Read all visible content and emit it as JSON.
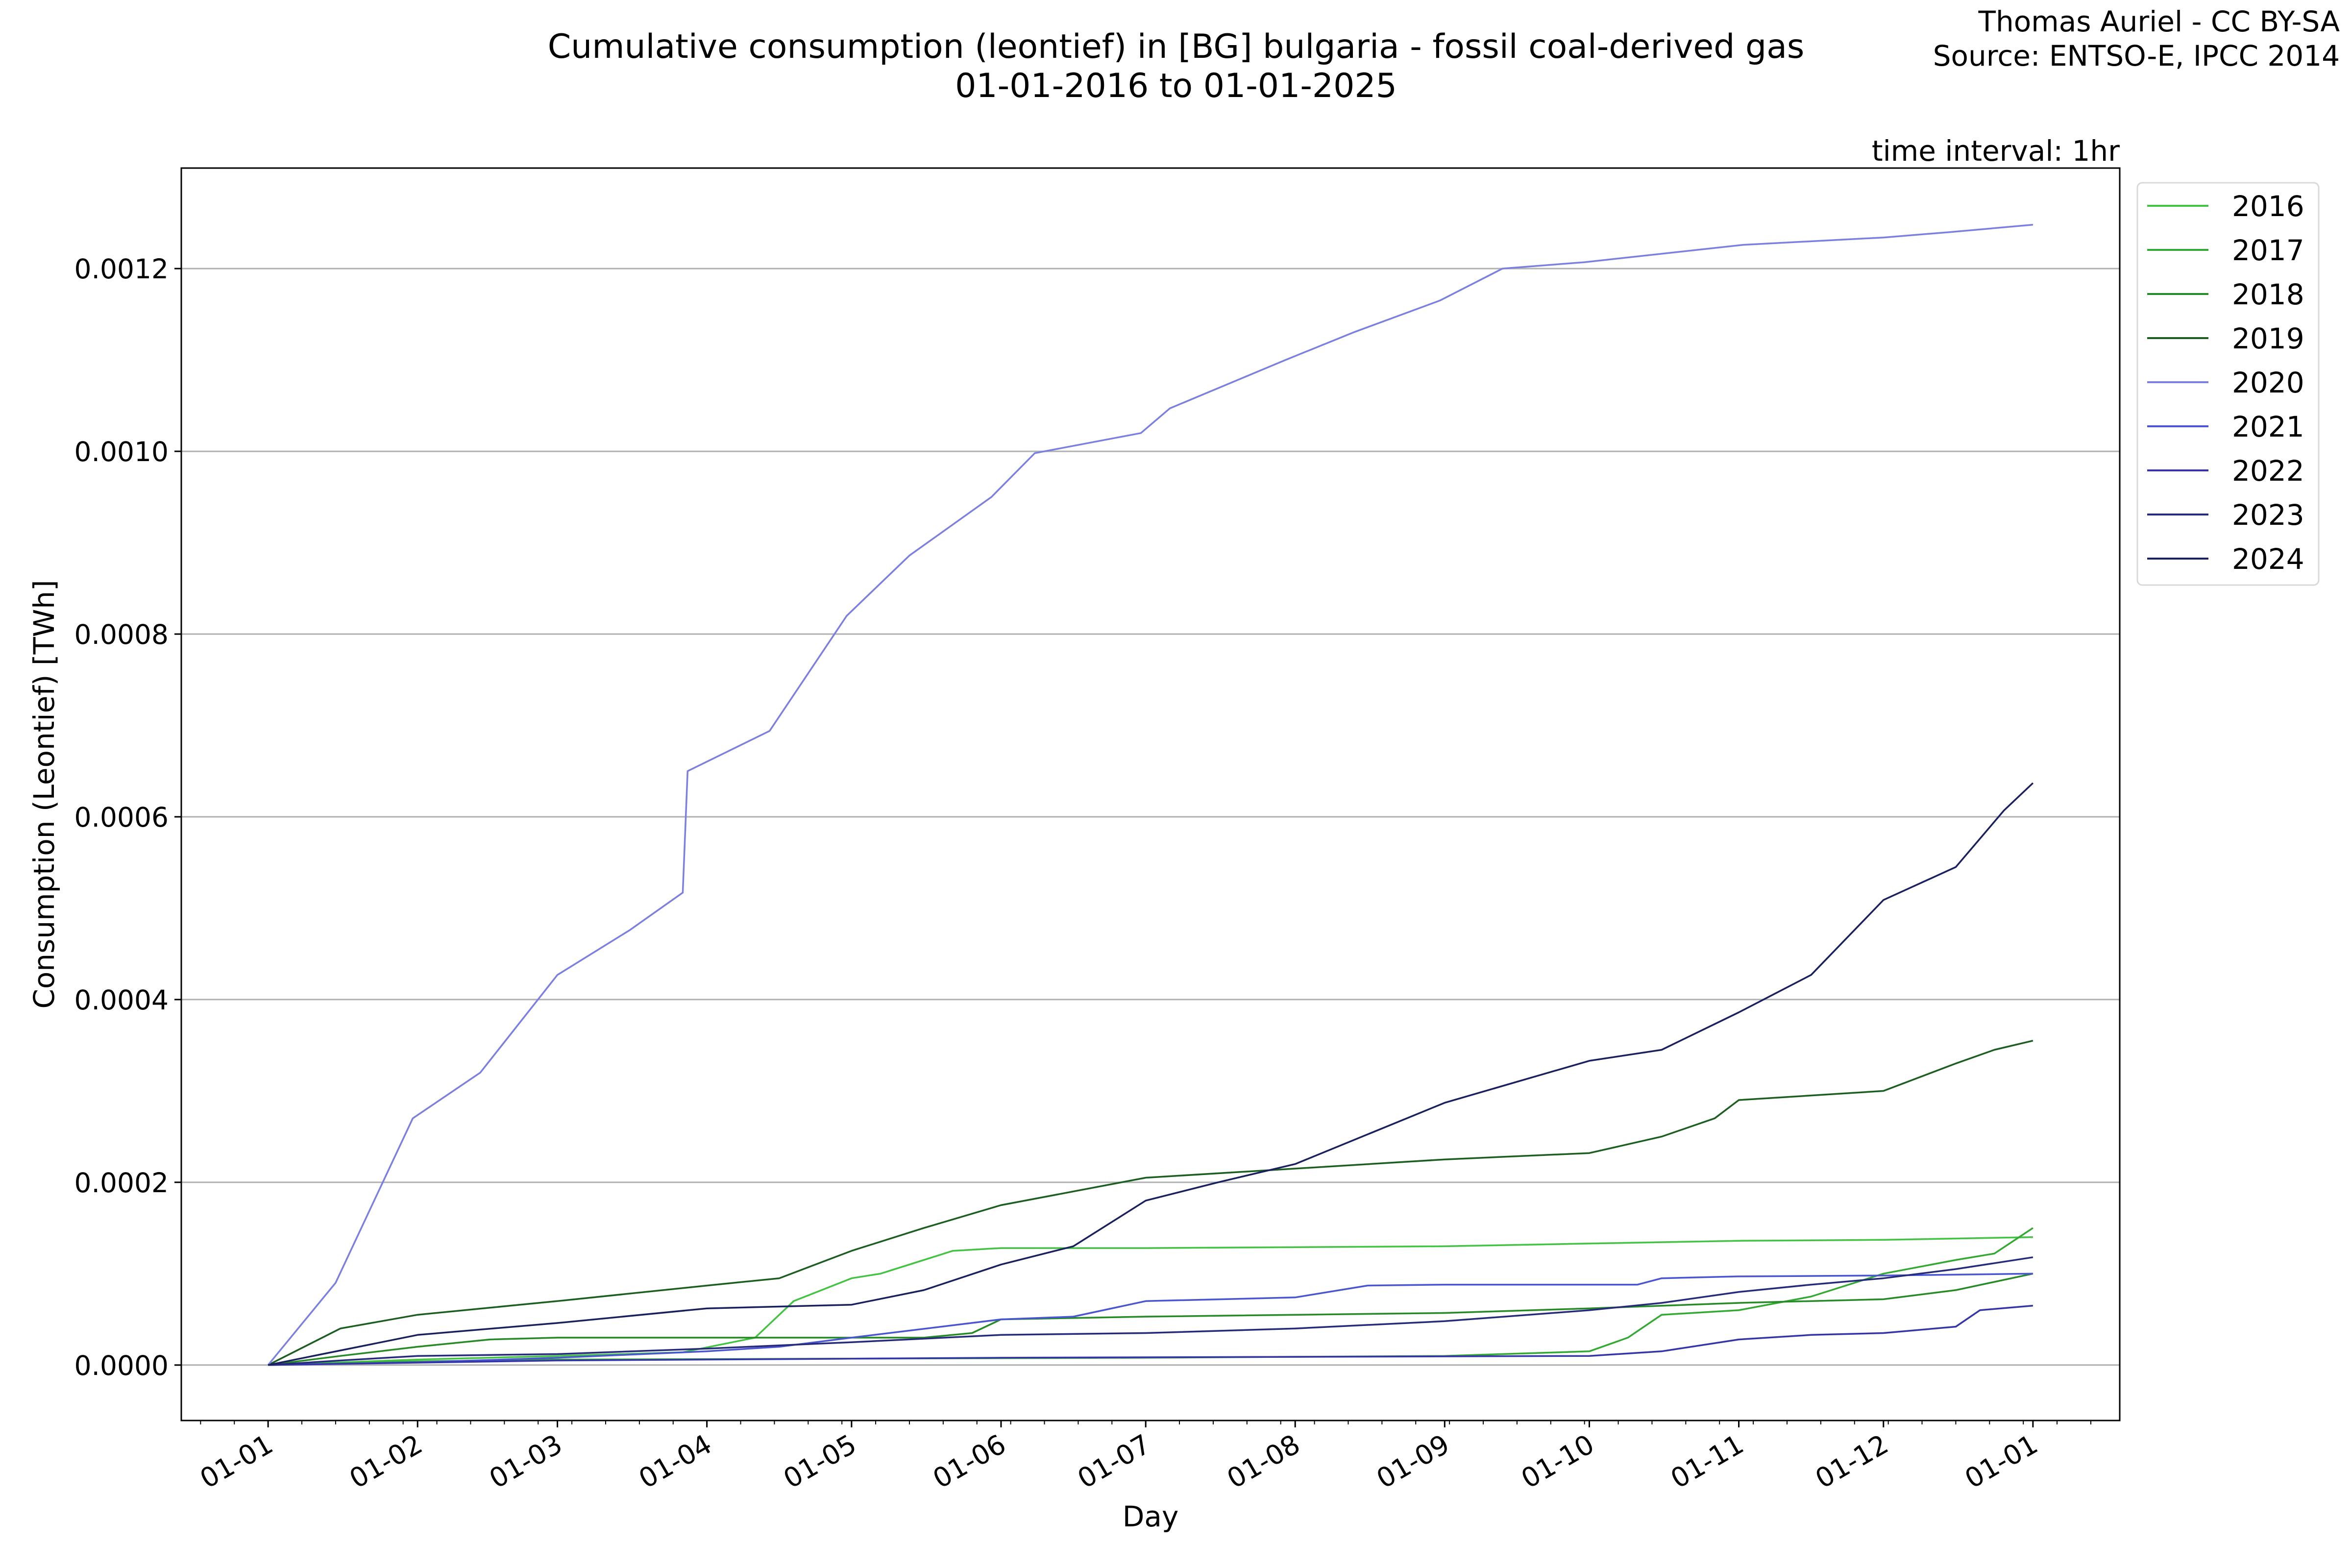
{
  "chart_data": {
    "type": "line",
    "title": "Cumulative consumption (leontief) in [BG] bulgaria - fossil coal-derived gas",
    "subtitle": "01-01-2016 to 01-01-2025",
    "credit_line1": "Thomas Auriel - CC BY-SA",
    "credit_line2": "Source: ENTSO-E, IPCC 2014",
    "annotation": "time interval: 1hr",
    "xlabel": "Day",
    "ylabel": "Consumption (Leontief) [TWh]",
    "xlim": [
      -18,
      384
    ],
    "ylim": [
      -6.07e-05,
      0.00131
    ],
    "grid": "y",
    "legend_position": "outside-top-right",
    "x_unit": "day of year",
    "x_ticks": [
      {
        "day": 0,
        "label": "01-01"
      },
      {
        "day": 31,
        "label": "01-02"
      },
      {
        "day": 60,
        "label": "01-03"
      },
      {
        "day": 91,
        "label": "01-04"
      },
      {
        "day": 121,
        "label": "01-05"
      },
      {
        "day": 152,
        "label": "01-06"
      },
      {
        "day": 182,
        "label": "01-07"
      },
      {
        "day": 213,
        "label": "01-08"
      },
      {
        "day": 244,
        "label": "01-09"
      },
      {
        "day": 274,
        "label": "01-10"
      },
      {
        "day": 305,
        "label": "01-11"
      },
      {
        "day": 335,
        "label": "01-12"
      },
      {
        "day": 366,
        "label": "01-01"
      }
    ],
    "y_ticks": [
      {
        "value": 0,
        "label": "0.0000"
      },
      {
        "value": 0.0002,
        "label": "0.0002"
      },
      {
        "value": 0.0004,
        "label": "0.0004"
      },
      {
        "value": 0.0006,
        "label": "0.0006"
      },
      {
        "value": 0.0008,
        "label": "0.0008"
      },
      {
        "value": 0.001,
        "label": "0.0010"
      },
      {
        "value": 0.0012,
        "label": "0.0012"
      }
    ],
    "series": [
      {
        "name": "2016",
        "color": "#44c244",
        "x": [
          0,
          31,
          60,
          86,
          101,
          109,
          121,
          127,
          142,
          152,
          182,
          244,
          274,
          305,
          335,
          366
        ],
        "y": [
          0,
          6e-06,
          1e-05,
          1.4e-05,
          3e-05,
          7e-05,
          9.5e-05,
          0.0001,
          0.000125,
          0.000128,
          0.000128,
          0.00013,
          0.000133,
          0.000136,
          0.000137,
          0.00014
        ]
      },
      {
        "name": "2017",
        "color": "#33a833",
        "x": [
          0,
          31,
          60,
          121,
          182,
          244,
          274,
          282,
          289,
          305,
          320,
          335,
          350,
          358,
          366
        ],
        "y": [
          0,
          4e-06,
          6e-06,
          7e-06,
          8e-06,
          1e-05,
          1.5e-05,
          3e-05,
          5.5e-05,
          6e-05,
          7.5e-05,
          0.0001,
          0.000115,
          0.000122,
          0.00015
        ]
      },
      {
        "name": "2018",
        "color": "#268a26",
        "x": [
          0,
          15,
          31,
          46,
          60,
          136,
          146,
          152,
          182,
          244,
          274,
          305,
          335,
          350,
          366
        ],
        "y": [
          0,
          1e-05,
          2e-05,
          2.8e-05,
          3e-05,
          3e-05,
          3.5e-05,
          5e-05,
          5.3e-05,
          5.7e-05,
          6.2e-05,
          6.8e-05,
          7.2e-05,
          8.2e-05,
          0.0001
        ]
      },
      {
        "name": "2019",
        "color": "#1b5e20",
        "x": [
          0,
          15,
          31,
          60,
          91,
          106,
          121,
          136,
          152,
          182,
          213,
          244,
          274,
          289,
          300,
          305,
          335,
          350,
          358,
          366
        ],
        "y": [
          0,
          4e-05,
          5.5e-05,
          7e-05,
          8.7e-05,
          9.5e-05,
          0.000125,
          0.00015,
          0.000175,
          0.000205,
          0.000215,
          0.000225,
          0.000232,
          0.00025,
          0.00027,
          0.00029,
          0.0003,
          0.00033,
          0.000345,
          0.000355
        ]
      },
      {
        "name": "2020",
        "color": "#7b80e0",
        "x": [
          0,
          14,
          30,
          44,
          60,
          75,
          86,
          87,
          104,
          120,
          133,
          150,
          159,
          181,
          187,
          211,
          225,
          243,
          256,
          273,
          306,
          335,
          349,
          366
        ],
        "y": [
          0,
          9e-05,
          0.00027,
          0.00032,
          0.000427,
          0.000476,
          0.000517,
          0.00065,
          0.000694,
          0.00082,
          0.000886,
          0.00095,
          0.000998,
          0.00102,
          0.001047,
          0.0011,
          0.00113,
          0.001165,
          0.0012,
          0.001207,
          0.001226,
          0.001234,
          0.00124,
          0.001248
        ]
      },
      {
        "name": "2021",
        "color": "#4a55d0",
        "x": [
          0,
          31,
          60,
          91,
          106,
          121,
          152,
          167,
          182,
          213,
          228,
          244,
          284,
          289,
          305,
          335,
          366
        ],
        "y": [
          0,
          3e-06,
          8e-06,
          1.5e-05,
          2e-05,
          3e-05,
          5e-05,
          5.3e-05,
          7e-05,
          7.4e-05,
          8.7e-05,
          8.8e-05,
          8.8e-05,
          9.5e-05,
          9.7e-05,
          9.8e-05,
          0.0001
        ]
      },
      {
        "name": "2022",
        "color": "#3535a8",
        "x": [
          0,
          60,
          152,
          274,
          289,
          305,
          320,
          335,
          350,
          355,
          366
        ],
        "y": [
          0,
          5e-06,
          8e-06,
          1e-05,
          1.5e-05,
          2.8e-05,
          3.3e-05,
          3.5e-05,
          4.2e-05,
          6e-05,
          6.5e-05
        ]
      },
      {
        "name": "2023",
        "color": "#262a7a",
        "x": [
          0,
          15,
          31,
          60,
          91,
          121,
          152,
          182,
          213,
          244,
          274,
          289,
          305,
          320,
          335,
          350,
          366
        ],
        "y": [
          0,
          5e-06,
          1e-05,
          1.2e-05,
          1.8e-05,
          2.5e-05,
          3.3e-05,
          3.5e-05,
          4e-05,
          4.8e-05,
          6e-05,
          6.8e-05,
          8e-05,
          8.8e-05,
          9.5e-05,
          0.000105,
          0.000118
        ]
      },
      {
        "name": "2024",
        "color": "#1a1f5e",
        "x": [
          0,
          31,
          60,
          91,
          121,
          136,
          152,
          167,
          182,
          197,
          213,
          244,
          259,
          274,
          289,
          305,
          320,
          335,
          350,
          360,
          366
        ],
        "y": [
          0,
          3.3e-05,
          4.6e-05,
          6.2e-05,
          6.6e-05,
          8.2e-05,
          0.00011,
          0.00013,
          0.00018,
          0.0002,
          0.00022,
          0.000287,
          0.00031,
          0.000333,
          0.000345,
          0.000386,
          0.000427,
          0.000509,
          0.000545,
          0.000607,
          0.000637
        ]
      }
    ]
  }
}
